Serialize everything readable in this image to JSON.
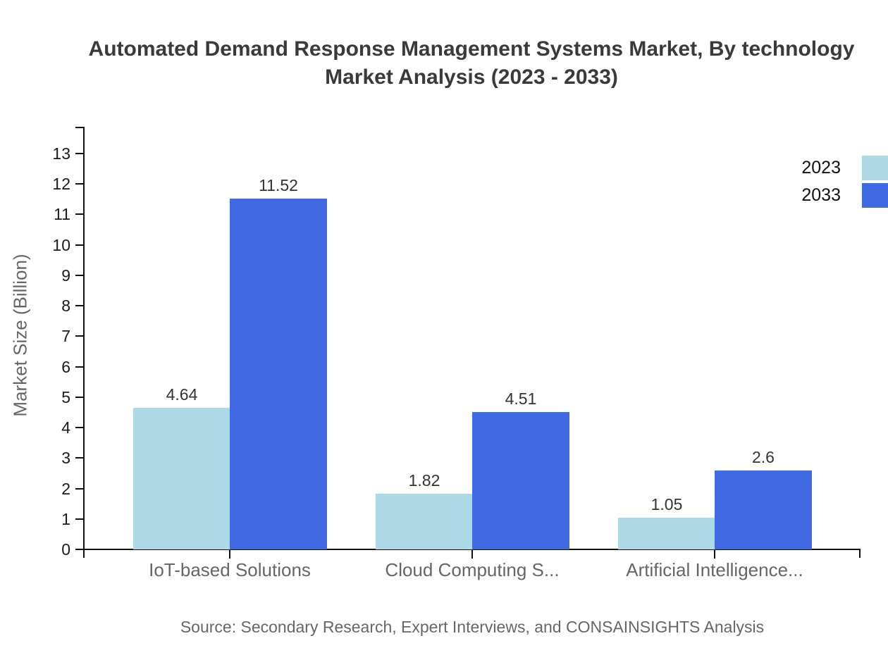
{
  "title": {
    "line1": "Automated Demand Response Management Systems Market, By technology",
    "line2": "Market Analysis (2023 - 2033)"
  },
  "source_note": "Source: Secondary Research, Expert Interviews, and CONSAINSIGHTS Analysis",
  "chart_data": {
    "type": "bar",
    "title": "Automated Demand Response Management Systems Market, By technology Market Analysis (2023 - 2033)",
    "categories": [
      "IoT-based Solutions",
      "Cloud Computing S...",
      "Artificial Intelligence..."
    ],
    "series": [
      {
        "name": "2023",
        "color": "#ADD8E6",
        "values": [
          4.64,
          1.82,
          1.05
        ],
        "labels": [
          "4.64",
          "1.82",
          "1.05"
        ]
      },
      {
        "name": "2033",
        "color": "#4169E1",
        "values": [
          11.52,
          4.51,
          2.6
        ],
        "labels": [
          "11.52",
          "4.51",
          "2.6"
        ]
      }
    ],
    "xlabel": "",
    "ylabel": "Market Size (Billion)",
    "ylim": [
      0,
      13
    ],
    "yticks": [
      0,
      1,
      2,
      3,
      4,
      5,
      6,
      7,
      8,
      9,
      10,
      11,
      12,
      13
    ],
    "grid": false,
    "legend_position": "top-right",
    "background": "#ffffff",
    "axis_color": "#111111"
  }
}
